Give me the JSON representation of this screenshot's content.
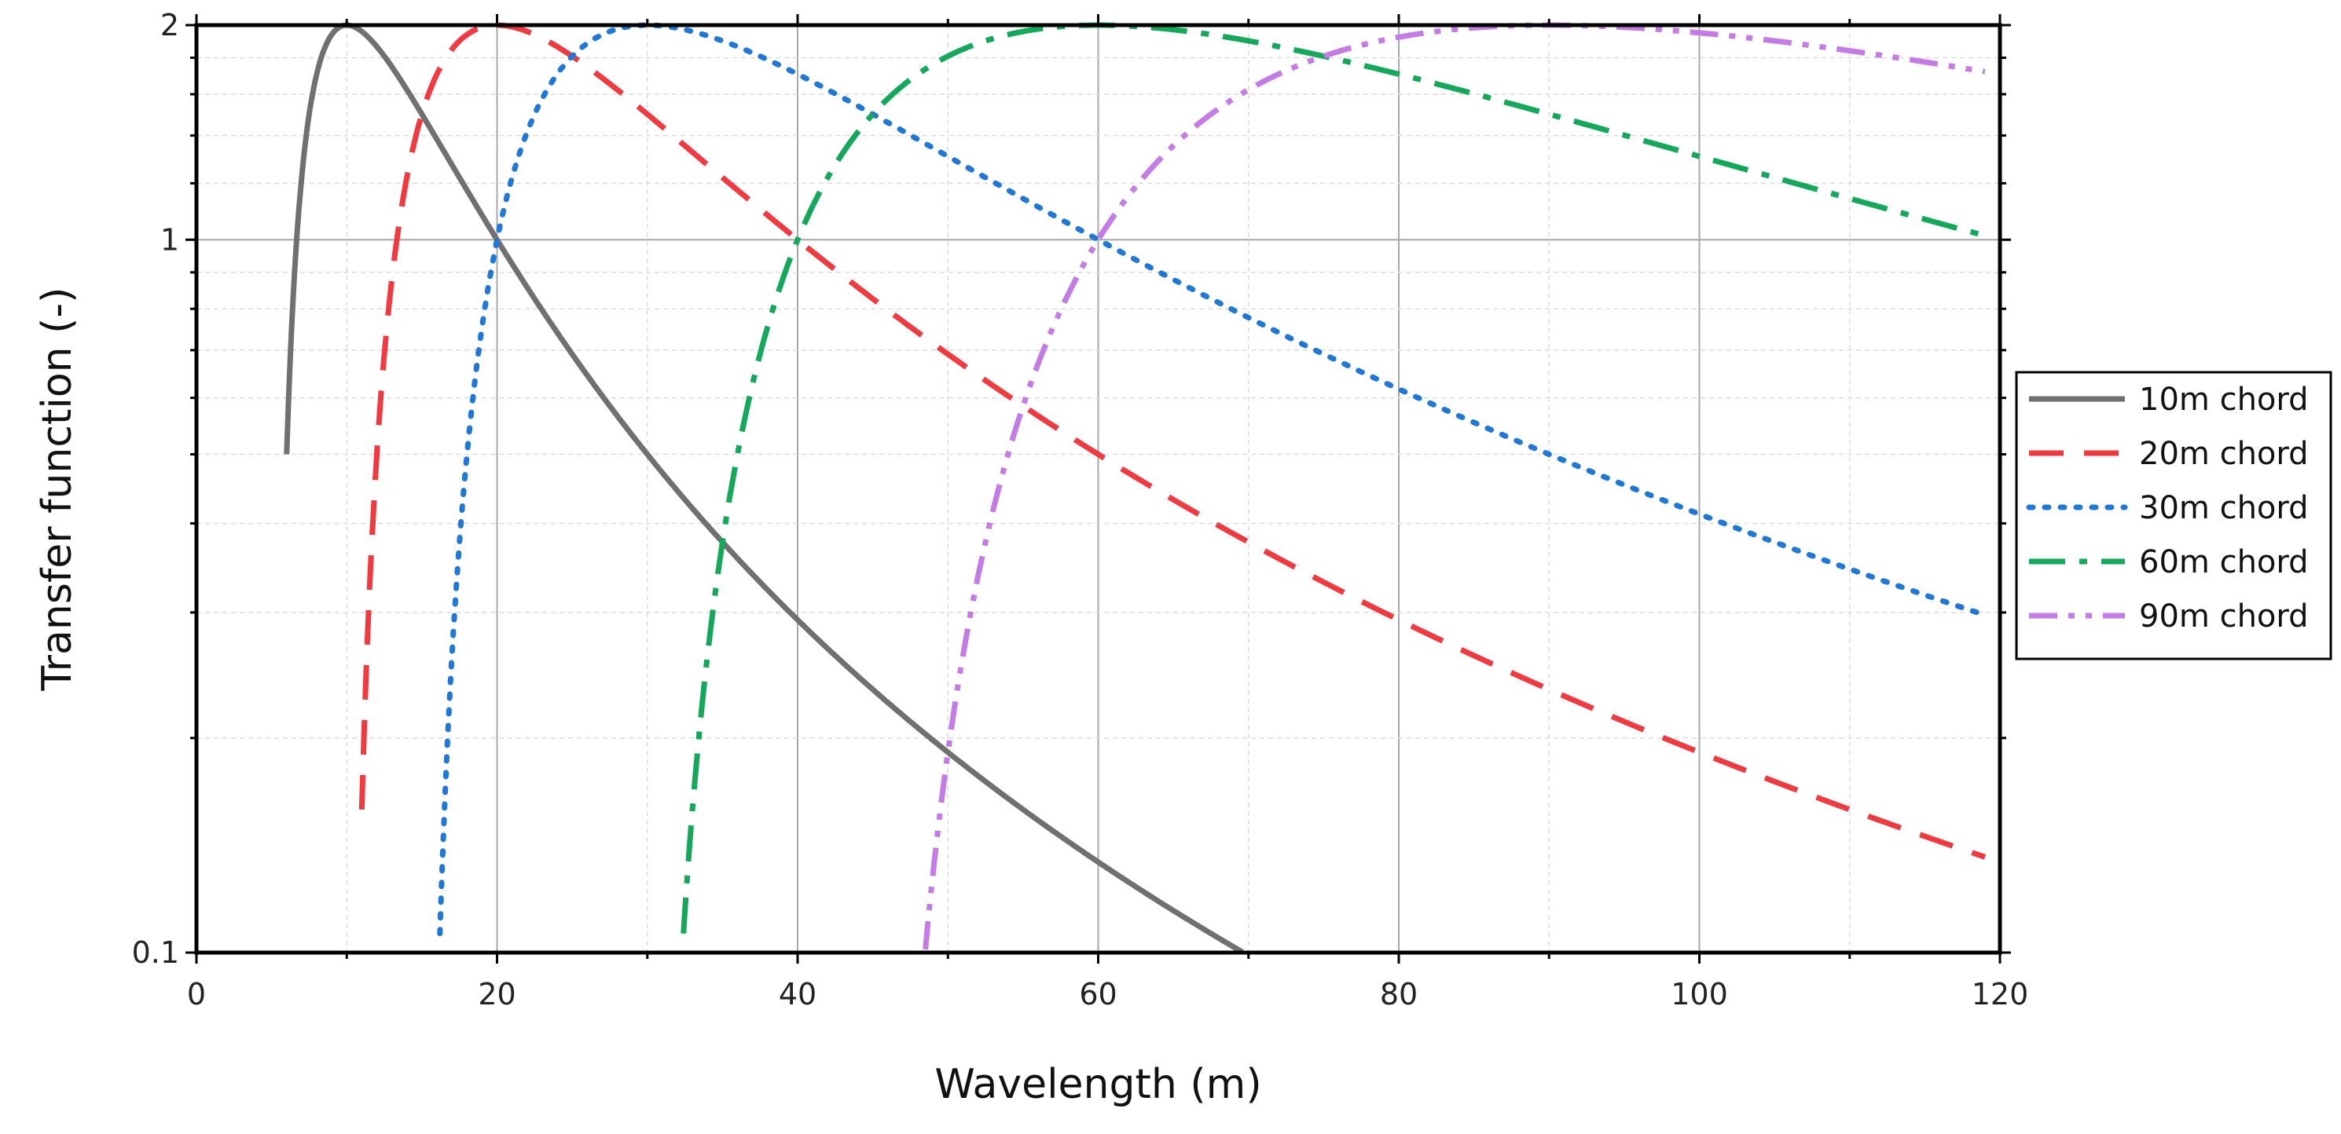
{
  "chart_data": {
    "type": "line",
    "title": "",
    "xlabel": "Wavelength (m)",
    "ylabel": "Transfer function (-)",
    "xlim": [
      0,
      120
    ],
    "ylim": [
      0.1,
      2
    ],
    "yscale": "log",
    "x_ticks": [
      0,
      20,
      40,
      60,
      80,
      100,
      120
    ],
    "x_tick_labels": [
      "0",
      "20",
      "40",
      "60",
      "80",
      "100",
      "120"
    ],
    "y_ticks": [
      0.1,
      1,
      2
    ],
    "y_tick_labels": [
      "0.1",
      "1",
      "2"
    ],
    "grid": true,
    "legend_position": "right",
    "series": [
      {
        "name": "10m chord",
        "chord": 10,
        "color": "#707070",
        "style": "solid",
        "x_range": [
          6,
          70
        ]
      },
      {
        "name": "20m chord",
        "chord": 20,
        "color": "#f2393f",
        "style": "dash",
        "x_range": [
          11,
          119
        ]
      },
      {
        "name": "30m chord",
        "chord": 30,
        "color": "#1f77d8",
        "style": "dot",
        "x_range": [
          16,
          119
        ]
      },
      {
        "name": "60m chord",
        "chord": 60,
        "color": "#14a85a",
        "style": "dashdot",
        "x_range": [
          32,
          119
        ]
      },
      {
        "name": "90m chord",
        "chord": 90,
        "color": "#c57be6",
        "style": "dashdotdot",
        "x_range": [
          48,
          119
        ]
      }
    ]
  }
}
